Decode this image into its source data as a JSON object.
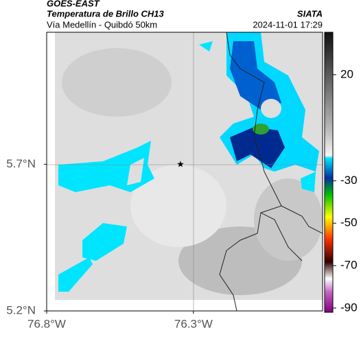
{
  "chart_data": {
    "type": "map",
    "title": "GOES-EAST",
    "subtitle": "Temperatura de Brillo CH13",
    "region": "Vía Medellín - Quibdó 50km",
    "source": "SIATA",
    "timestamp": "2024-11-01 17:29",
    "xlim": [
      -76.8,
      -75.86
    ],
    "xticks": [
      {
        "value": -76.8,
        "label": "76.8°W"
      },
      {
        "value": -76.3,
        "label": "76.3°W"
      }
    ],
    "ylim": [
      5.2,
      6.15
    ],
    "yticks": [
      {
        "value": 5.2,
        "label": "5.2°N"
      },
      {
        "value": 5.7,
        "label": "5.7°N"
      }
    ],
    "colorbar": {
      "lim": [
        40,
        -92
      ],
      "ticks": [
        20,
        -30,
        -50,
        -70,
        -90
      ]
    }
  }
}
